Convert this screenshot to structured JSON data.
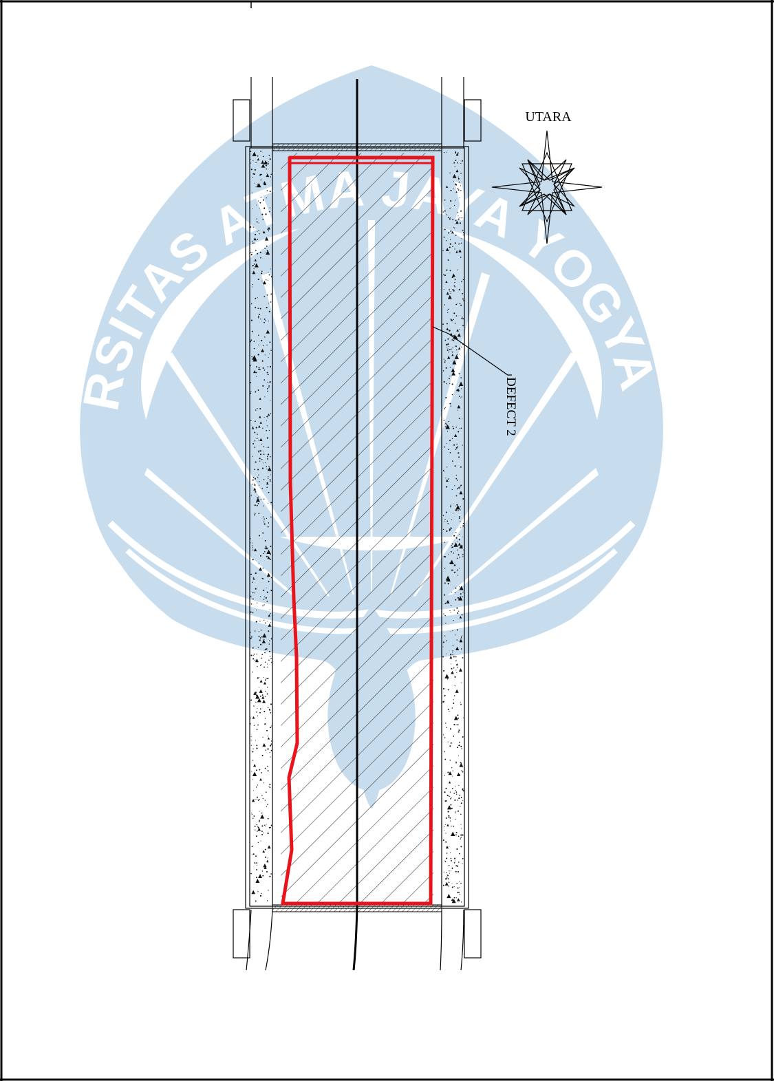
{
  "drawing": {
    "north_label": "UTARA",
    "defect_label": "DEFECT 2"
  },
  "watermark": {
    "text": "UNIVERSITAS ATMA JAYA YOGYAKARTA",
    "color": "#c5dced"
  },
  "colors": {
    "defect_outline": "#e8141c",
    "linework": "#000000",
    "hatch": "#222222",
    "page_border": "#000000"
  },
  "icons": {
    "north_arrow": "compass-star-icon"
  }
}
